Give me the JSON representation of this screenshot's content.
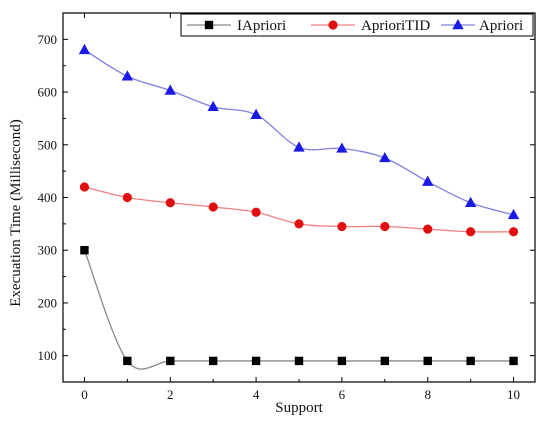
{
  "chart_data": {
    "type": "line",
    "title": "",
    "xlabel": "Support",
    "ylabel": "Execuation Time (Millisecond)",
    "xlim": [
      -0.5,
      10.5
    ],
    "ylim": [
      50,
      750
    ],
    "xticks": [
      0,
      2,
      4,
      6,
      8,
      10
    ],
    "yticks": [
      100,
      200,
      300,
      400,
      500,
      600,
      700
    ],
    "grid": false,
    "legend_position": "top-right",
    "x": [
      0,
      1,
      2,
      3,
      4,
      5,
      6,
      7,
      8,
      9,
      10
    ],
    "series": [
      {
        "name": "IApriori",
        "color": "#000000",
        "marker": "square",
        "line_color": "#888888",
        "values": [
          300,
          90,
          90,
          90,
          90,
          90,
          90,
          90,
          90,
          90,
          90
        ]
      },
      {
        "name": "AprioriTID",
        "color": "#e01010",
        "marker": "circle",
        "line_color": "#f08080",
        "values": [
          420,
          400,
          390,
          382,
          372,
          350,
          345,
          345,
          340,
          335,
          335
        ]
      },
      {
        "name": "Apriori",
        "color": "#1a1ae6",
        "marker": "triangle",
        "line_color": "#8080e0",
        "values": [
          680,
          630,
          603,
          572,
          557,
          495,
          493,
          475,
          430,
          390,
          367
        ]
      }
    ]
  }
}
